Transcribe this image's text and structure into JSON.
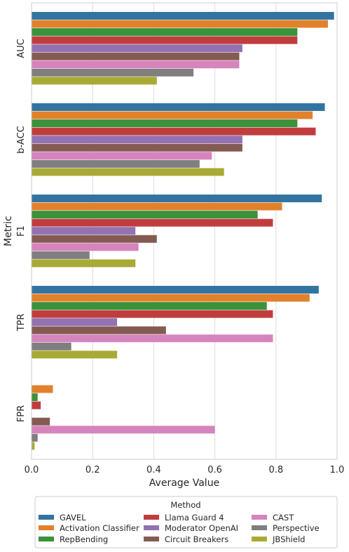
{
  "chart_data": {
    "type": "bar",
    "orientation": "horizontal",
    "categories": [
      "AUC",
      "b-ACC",
      "F1",
      "TPR",
      "FPR"
    ],
    "series": [
      {
        "name": "GAVEL",
        "color": "#3274a1",
        "values": [
          0.99,
          0.96,
          0.95,
          0.94,
          null
        ]
      },
      {
        "name": "Activation Classifier",
        "color": "#e1812c",
        "values": [
          0.97,
          0.92,
          0.82,
          0.91,
          0.07
        ]
      },
      {
        "name": "RepBending",
        "color": "#3a923a",
        "values": [
          0.87,
          0.87,
          0.74,
          0.77,
          0.02
        ]
      },
      {
        "name": "Llama Guard 4",
        "color": "#c03d3e",
        "values": [
          0.87,
          0.93,
          0.79,
          0.79,
          0.03
        ]
      },
      {
        "name": "Moderator OpenAI",
        "color": "#9372b2",
        "values": [
          0.69,
          0.69,
          0.34,
          0.28,
          null
        ]
      },
      {
        "name": "Circuit Breakers",
        "color": "#845b53",
        "values": [
          0.68,
          0.69,
          0.41,
          0.44,
          0.06
        ]
      },
      {
        "name": "CAST",
        "color": "#d684bd",
        "values": [
          0.68,
          0.59,
          0.35,
          0.79,
          0.6
        ]
      },
      {
        "name": "Perspective",
        "color": "#7f7f7f",
        "values": [
          0.53,
          0.55,
          0.19,
          0.13,
          0.02
        ]
      },
      {
        "name": "JBShield",
        "color": "#a9aa35",
        "values": [
          0.41,
          0.63,
          0.34,
          0.28,
          0.01
        ]
      }
    ],
    "xlabel": "Average Value",
    "ylabel": "Metric",
    "xlim": [
      0.0,
      1.0
    ],
    "xticks": [
      "0.0",
      "0.2",
      "0.4",
      "0.6",
      "0.8",
      "1.0"
    ],
    "grid": "vertical",
    "legend": {
      "title": "Method",
      "placement": "bottom"
    }
  }
}
